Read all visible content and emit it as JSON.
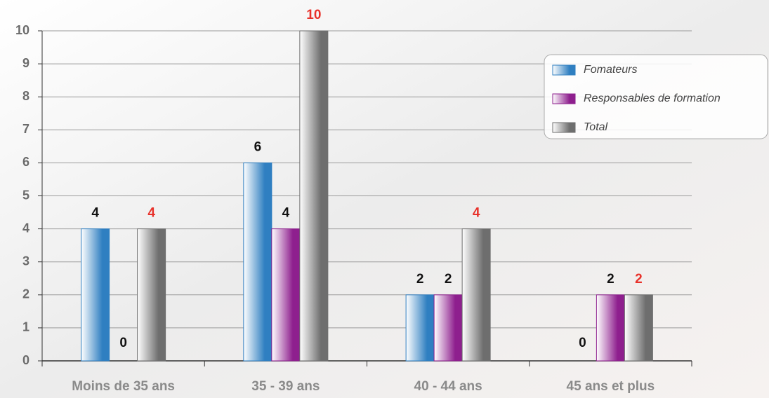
{
  "chart_data": {
    "type": "bar",
    "categories": [
      "Moins de 35 ans",
      "35 - 39 ans",
      "40 - 44 ans",
      "45 ans et plus"
    ],
    "series": [
      {
        "name": "Fomateurs",
        "color": "#2f7fc1",
        "label_color": "#111111",
        "values": [
          4,
          6,
          2,
          0
        ]
      },
      {
        "name": "Responsables de formation",
        "color": "#8e1f8e",
        "label_color": "#111111",
        "values": [
          0,
          4,
          2,
          2
        ]
      },
      {
        "name": "Total",
        "color": "#6e6e6e",
        "label_color": "#e8312a",
        "values": [
          4,
          10,
          4,
          2
        ]
      }
    ],
    "ylim": [
      0,
      10
    ],
    "yticks": [
      0,
      1,
      2,
      3,
      4,
      5,
      6,
      7,
      8,
      9,
      10
    ],
    "grid": true,
    "legend": "upper right"
  }
}
